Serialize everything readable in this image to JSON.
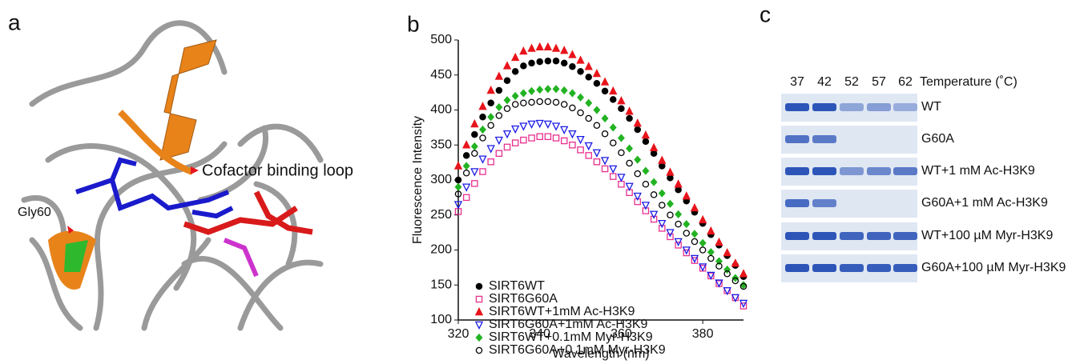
{
  "panels": {
    "a": "a",
    "b": "b",
    "c": "c"
  },
  "structure": {
    "annotations": [
      "Gly60",
      "Cofactor binding loop"
    ]
  },
  "chart_data": {
    "type": "scatter",
    "xlabel": "Wavelength (nm)",
    "ylabel": "Fluorescence Intensity",
    "xlim": [
      320,
      390
    ],
    "ylim": [
      100,
      500
    ],
    "xticks": [
      320,
      340,
      360,
      380
    ],
    "yticks": [
      100,
      150,
      200,
      250,
      300,
      350,
      400,
      450,
      500
    ],
    "legend": "lower-left",
    "x": [
      320,
      322,
      324,
      326,
      328,
      330,
      332,
      334,
      336,
      338,
      340,
      342,
      344,
      346,
      348,
      350,
      352,
      354,
      356,
      358,
      360,
      362,
      364,
      366,
      368,
      370,
      372,
      374,
      376,
      378,
      380,
      382,
      384,
      386,
      388,
      390
    ],
    "series": [
      {
        "name": "SIRT6WT",
        "color": "#000000",
        "marker": "circle",
        "filled": true,
        "values": [
          300,
          335,
          365,
          390,
          410,
          428,
          442,
          455,
          463,
          467,
          469,
          470,
          470,
          467,
          462,
          455,
          447,
          438,
          427,
          415,
          402,
          388,
          372,
          355,
          338,
          320,
          303,
          286,
          270,
          254,
          238,
          222,
          207,
          192,
          178,
          162
        ]
      },
      {
        "name": "SIRT6G60A",
        "color": "#e8308e",
        "marker": "square",
        "filled": false,
        "values": [
          255,
          275,
          295,
          312,
          326,
          338,
          347,
          353,
          357,
          360,
          362,
          362,
          360,
          356,
          350,
          343,
          335,
          326,
          316,
          305,
          294,
          282,
          269,
          256,
          244,
          231,
          219,
          207,
          196,
          185,
          174,
          163,
          152,
          142,
          132,
          120
        ]
      },
      {
        "name": "SIRT6WT+1mM Ac-H3K9",
        "color": "#e8141b",
        "marker": "triangle",
        "filled": true,
        "values": [
          320,
          350,
          380,
          405,
          428,
          448,
          463,
          475,
          484,
          488,
          490,
          490,
          488,
          485,
          479,
          471,
          462,
          452,
          440,
          427,
          413,
          398,
          381,
          364,
          346,
          328,
          311,
          294,
          277,
          260,
          243,
          227,
          211,
          196,
          181,
          166
        ]
      },
      {
        "name": "SIRT6G60A+1mM Ac-H3K9",
        "color": "#1a1ae6",
        "marker": "triangle-down",
        "filled": false,
        "values": [
          265,
          290,
          312,
          330,
          345,
          357,
          366,
          373,
          377,
          380,
          381,
          380,
          377,
          372,
          366,
          358,
          349,
          339,
          328,
          316,
          304,
          291,
          277,
          264,
          251,
          238,
          225,
          212,
          200,
          188,
          176,
          164,
          153,
          142,
          132,
          124
        ]
      },
      {
        "name": "SIRT6WT+0.1mM Myr-H3K9",
        "color": "#22b322",
        "marker": "diamond",
        "filled": true,
        "values": [
          290,
          320,
          348,
          372,
          390,
          404,
          414,
          420,
          424,
          427,
          429,
          430,
          430,
          428,
          424,
          418,
          410,
          400,
          388,
          375,
          360,
          345,
          329,
          313,
          297,
          281,
          266,
          251,
          237,
          223,
          210,
          197,
          184,
          172,
          160,
          150
        ]
      },
      {
        "name": "SIRT6G60A+0.1mM Myr-H3K9",
        "color": "#000000",
        "marker": "circle",
        "filled": false,
        "values": [
          280,
          310,
          338,
          360,
          378,
          392,
          402,
          408,
          410,
          411,
          412,
          412,
          411,
          408,
          403,
          396,
          388,
          378,
          366,
          353,
          339,
          324,
          309,
          294,
          279,
          264,
          250,
          237,
          224,
          212,
          200,
          188,
          177,
          166,
          156,
          148
        ]
      }
    ]
  },
  "gel": {
    "lanes": [
      "37",
      "42",
      "52",
      "57",
      "62"
    ],
    "header": "Temperature (˚C)",
    "rows": [
      "WT",
      "G60A",
      "WT+1 mM Ac-H3K9",
      "G60A+1 mM Ac-H3K9",
      "WT+100 µM Myr-H3K9",
      "G60A+100 µM Myr-H3K9"
    ]
  }
}
